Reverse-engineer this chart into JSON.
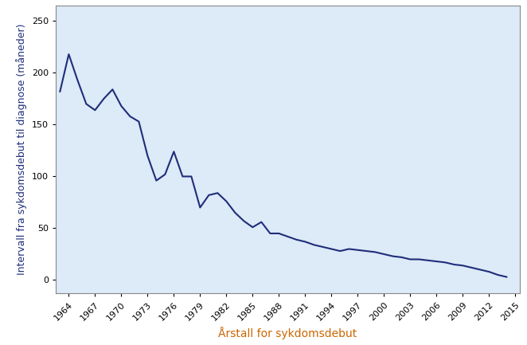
{
  "x": [
    1963,
    1964,
    1965,
    1966,
    1967,
    1968,
    1969,
    1970,
    1971,
    1972,
    1973,
    1974,
    1975,
    1976,
    1977,
    1978,
    1979,
    1980,
    1981,
    1982,
    1983,
    1984,
    1985,
    1986,
    1987,
    1988,
    1989,
    1990,
    1991,
    1992,
    1993,
    1994,
    1995,
    1996,
    1997,
    1998,
    1999,
    2000,
    2001,
    2002,
    2003,
    2004,
    2005,
    2006,
    2007,
    2008,
    2009,
    2010,
    2011,
    2012,
    2013,
    2014
  ],
  "y": [
    182,
    218,
    193,
    170,
    164,
    175,
    184,
    168,
    158,
    153,
    120,
    96,
    102,
    124,
    100,
    100,
    70,
    82,
    84,
    76,
    65,
    57,
    51,
    56,
    45,
    45,
    42,
    39,
    37,
    34,
    32,
    30,
    28,
    30,
    29,
    28,
    27,
    25,
    23,
    22,
    20,
    20,
    19,
    18,
    17,
    15,
    14,
    12,
    10,
    8,
    5,
    3
  ],
  "line_color": "#1f2d7a",
  "line_width": 1.5,
  "bg_color": "#ddeaf7",
  "outer_bg": "#ffffff",
  "xlabel": "Årstall for sykdomsdebut",
  "ylabel": "Intervall fra sykdomsdebut til diagnose (måneder)",
  "xlabel_color": "#cc6600",
  "ylabel_color": "#1f2d7a",
  "xlabel_fontsize": 10,
  "ylabel_fontsize": 9,
  "xtick_labels": [
    "1964",
    "1967",
    "1970",
    "1973",
    "1976",
    "1979",
    "1982",
    "1985",
    "1988",
    "1991",
    "1994",
    "1997",
    "2000",
    "2003",
    "2006",
    "2009",
    "2012",
    "2015"
  ],
  "xtick_values": [
    1964,
    1967,
    1970,
    1973,
    1976,
    1979,
    1982,
    1985,
    1988,
    1991,
    1994,
    1997,
    2000,
    2003,
    2006,
    2009,
    2012,
    2015
  ],
  "ytick_values": [
    0,
    50,
    100,
    150,
    200,
    250
  ],
  "ylim": [
    -13,
    265
  ],
  "xlim": [
    1962.5,
    2015.5
  ]
}
